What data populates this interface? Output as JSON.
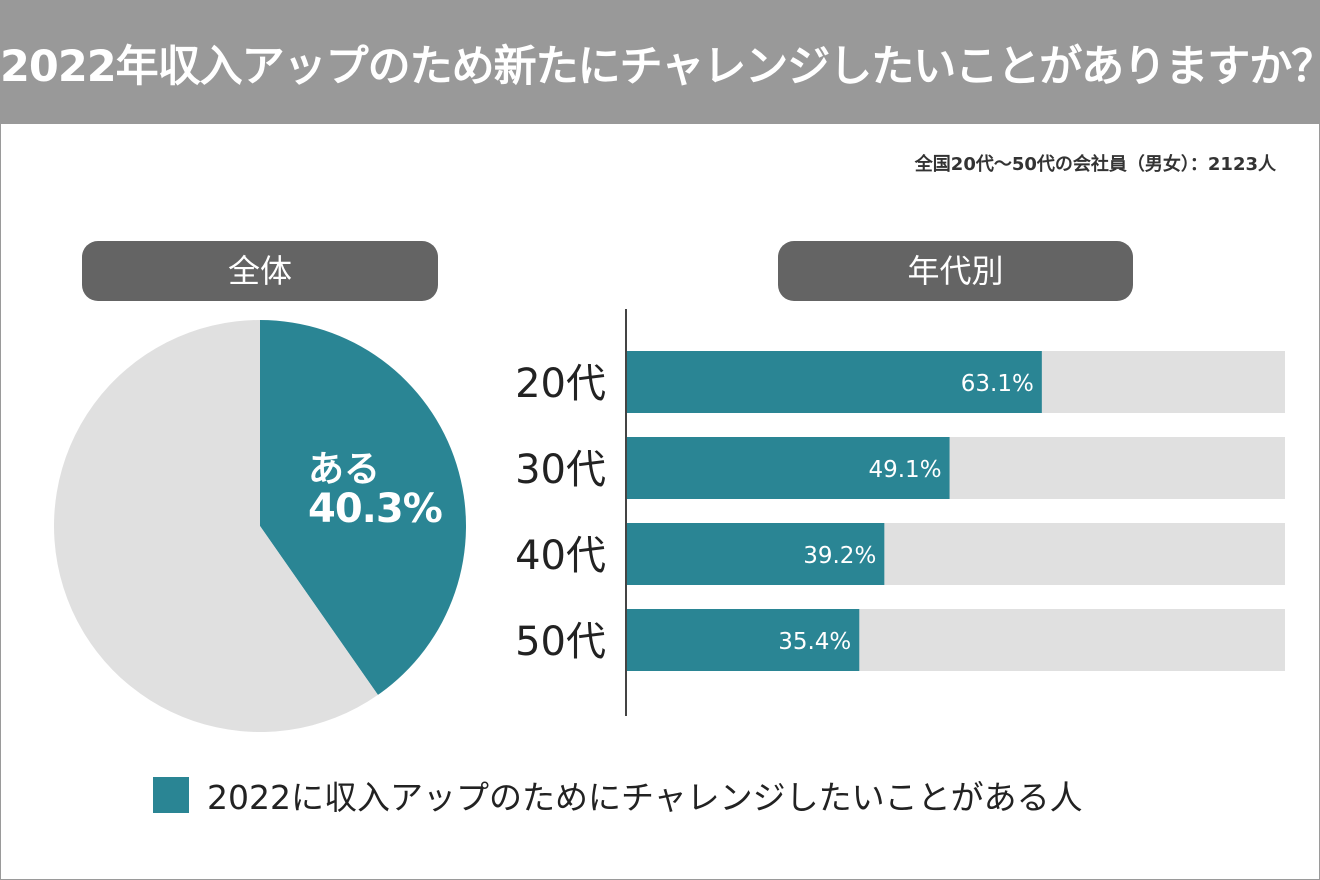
{
  "title": "2022年収入アップのため新たにチャレンジしたいことがありますか？",
  "survey_note": "全国20代〜50代の会社員（男女）：2123人",
  "colors": {
    "accent": "#2a8594",
    "remainder": "#e0e0e0",
    "banner": "#999999",
    "pill": "#646464"
  },
  "sections": {
    "overall_label": "全体",
    "by_age_label": "年代別"
  },
  "chart_data": [
    {
      "type": "pie",
      "title": "全体",
      "slices": [
        {
          "label": "ある",
          "value": 40.3,
          "display": "40.3%"
        },
        {
          "label": "",
          "value": 59.7
        }
      ]
    },
    {
      "type": "bar",
      "orientation": "horizontal",
      "title": "年代別",
      "categories": [
        "20代",
        "30代",
        "40代",
        "50代"
      ],
      "values": [
        63.1,
        49.1,
        39.2,
        35.4
      ],
      "value_labels": [
        "63.1%",
        "49.1%",
        "39.2%",
        "35.4%"
      ],
      "xlim": [
        0,
        100
      ]
    }
  ],
  "legend": {
    "label": "2022に収入アップのためにチャレンジしたいことがある人"
  }
}
